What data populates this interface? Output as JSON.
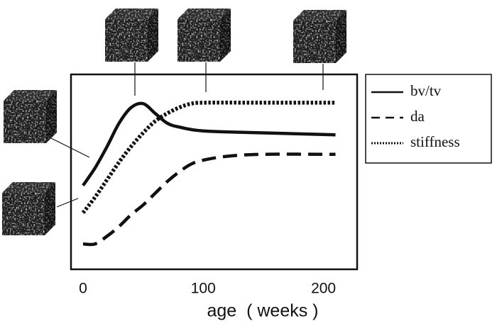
{
  "chart_data": {
    "type": "line",
    "x_label": "age  ( weeks )",
    "xlim": [
      -10,
      228
    ],
    "xticks": [
      0,
      100,
      200
    ],
    "ylim": [
      0,
      1
    ],
    "series": [
      {
        "name": "bv/tv",
        "color": "#111111",
        "style": "solid",
        "x": [
          0,
          10,
          20,
          30,
          40,
          50,
          60,
          70,
          80,
          100,
          150,
          210
        ],
        "values": [
          0.43,
          0.52,
          0.63,
          0.75,
          0.83,
          0.85,
          0.8,
          0.75,
          0.73,
          0.71,
          0.7,
          0.69
        ]
      },
      {
        "name": "da",
        "color": "#111111",
        "style": "dashed",
        "x": [
          0,
          10,
          20,
          30,
          40,
          50,
          60,
          70,
          80,
          90,
          100,
          120,
          150,
          210
        ],
        "values": [
          0.13,
          0.13,
          0.17,
          0.22,
          0.28,
          0.33,
          0.39,
          0.45,
          0.5,
          0.54,
          0.56,
          0.58,
          0.59,
          0.59
        ]
      },
      {
        "name": "stiffness",
        "color": "#111111",
        "style": "dotted",
        "x": [
          0,
          10,
          20,
          30,
          40,
          50,
          60,
          70,
          80,
          90,
          100,
          150,
          210
        ],
        "values": [
          0.29,
          0.37,
          0.46,
          0.55,
          0.63,
          0.7,
          0.76,
          0.8,
          0.83,
          0.85,
          0.855,
          0.855,
          0.855
        ]
      }
    ],
    "legend": "outside-right"
  }
}
